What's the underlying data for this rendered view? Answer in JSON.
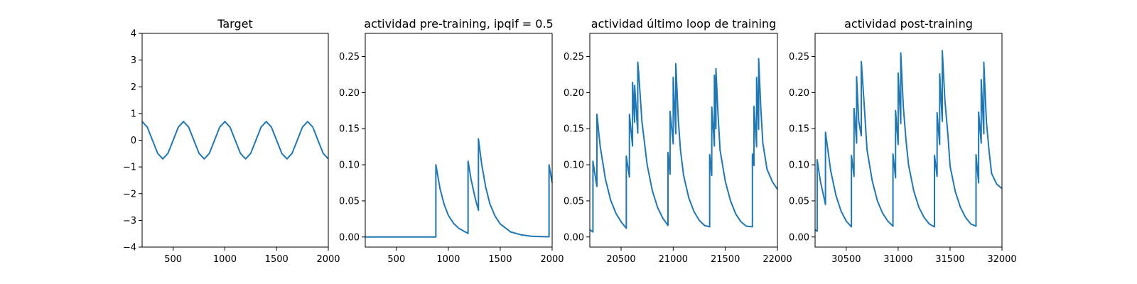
{
  "chart_data": [
    {
      "type": "line",
      "title": "Target",
      "xlabel": "",
      "ylabel": "",
      "xlim": [
        200,
        2000
      ],
      "ylim": [
        -4,
        4
      ],
      "xticks": [
        500,
        1000,
        1500,
        2000
      ],
      "yticks": [
        -4,
        -3,
        -2,
        -1,
        0,
        1,
        2,
        3,
        4
      ],
      "xtick_labels": [
        "500",
        "1000",
        "1500",
        "2000"
      ],
      "ytick_labels": [
        "−4",
        "−3",
        "−2",
        "−1",
        "0",
        "1",
        "2",
        "3",
        "4"
      ],
      "color": "#1f77b4",
      "series": [
        {
          "x": [
            200,
            250,
            300,
            350,
            400,
            450,
            500,
            550,
            600,
            650,
            700,
            750,
            800,
            850,
            900,
            950,
            1000,
            1050,
            1100,
            1150,
            1200,
            1250,
            1300,
            1350,
            1400,
            1450,
            1500,
            1550,
            1600,
            1650,
            1700,
            1750,
            1800,
            1850,
            1900,
            1950,
            2000
          ],
          "y": [
            0.7,
            0.49,
            0.0,
            -0.49,
            -0.7,
            -0.49,
            0.0,
            0.49,
            0.7,
            0.49,
            0.0,
            -0.49,
            -0.7,
            -0.49,
            0.0,
            0.49,
            0.7,
            0.49,
            0.0,
            -0.49,
            -0.7,
            -0.49,
            0.0,
            0.49,
            0.7,
            0.49,
            0.0,
            -0.49,
            -0.7,
            -0.49,
            0.0,
            0.49,
            0.7,
            0.49,
            0.0,
            -0.49,
            -0.7
          ]
        }
      ]
    },
    {
      "type": "line",
      "title": "actividad pre-training, ipqif = 0.5",
      "xlabel": "",
      "ylabel": "",
      "xlim": [
        200,
        2000
      ],
      "ylim": [
        -0.014,
        0.282
      ],
      "xticks": [
        500,
        1000,
        1500,
        2000
      ],
      "yticks": [
        0.0,
        0.05,
        0.1,
        0.15,
        0.2,
        0.25
      ],
      "xtick_labels": [
        "500",
        "1000",
        "1500",
        "2000"
      ],
      "ytick_labels": [
        "0.00",
        "0.05",
        "0.10",
        "0.15",
        "0.20",
        "0.25"
      ],
      "color": "#1f77b4",
      "series": [
        {
          "x": [
            200,
            880,
            880,
            920,
            960,
            1000,
            1050,
            1100,
            1150,
            1190,
            1190,
            1220,
            1260,
            1290,
            1290,
            1320,
            1360,
            1400,
            1450,
            1500,
            1600,
            1700,
            1800,
            1900,
            1970,
            1970,
            2000
          ],
          "y": [
            0.0,
            0.0,
            0.1,
            0.067,
            0.045,
            0.03,
            0.019,
            0.012,
            0.008,
            0.005,
            0.105,
            0.079,
            0.053,
            0.037,
            0.136,
            0.102,
            0.069,
            0.046,
            0.029,
            0.018,
            0.007,
            0.003,
            0.001,
            0.0005,
            0.0003,
            0.1,
            0.075
          ]
        }
      ]
    },
    {
      "type": "line",
      "title": "actividad último loop de training",
      "xlabel": "",
      "ylabel": "",
      "xlim": [
        20200,
        22000
      ],
      "ylim": [
        -0.014,
        0.282
      ],
      "xticks": [
        20500,
        21000,
        21500,
        22000
      ],
      "yticks": [
        0.0,
        0.05,
        0.1,
        0.15,
        0.2,
        0.25
      ],
      "xtick_labels": [
        "20500",
        "21000",
        "21500",
        "22000"
      ],
      "ytick_labels": [
        "0.00",
        "0.05",
        "0.10",
        "0.15",
        "0.20",
        "0.25"
      ],
      "color": "#1f77b4",
      "series": [
        {
          "x": [
            20200,
            20230,
            20230,
            20265,
            20265,
            20268,
            20268,
            20300,
            20350,
            20400,
            20450,
            20500,
            20550,
            20550,
            20580,
            20580,
            20610,
            20610,
            20630,
            20630,
            20660,
            20660,
            20670,
            20670,
            20700,
            20750,
            20800,
            20850,
            20900,
            20950,
            20950,
            20970,
            20970,
            21000,
            21000,
            21025,
            21025,
            21050,
            21050,
            21070,
            21070,
            21100,
            21150,
            21200,
            21250,
            21300,
            21350,
            21350,
            21370,
            21370,
            21395,
            21395,
            21410,
            21410,
            21430,
            21430,
            21450,
            21450,
            21500,
            21550,
            21600,
            21650,
            21700,
            21760,
            21760,
            21775,
            21775,
            21800,
            21800,
            21820,
            21820,
            21840,
            21840,
            21860,
            21860,
            21900,
            21950,
            22000
          ],
          "y": [
            0.01,
            0.007,
            0.105,
            0.072,
            0.072,
            0.07,
            0.17,
            0.125,
            0.08,
            0.051,
            0.033,
            0.021,
            0.012,
            0.112,
            0.083,
            0.17,
            0.126,
            0.214,
            0.159,
            0.21,
            0.144,
            0.242,
            0.225,
            0.225,
            0.16,
            0.1,
            0.064,
            0.041,
            0.026,
            0.016,
            0.117,
            0.087,
            0.174,
            0.129,
            0.221,
            0.143,
            0.24,
            0.16,
            0.16,
            0.12,
            0.12,
            0.085,
            0.054,
            0.035,
            0.023,
            0.016,
            0.014,
            0.114,
            0.085,
            0.18,
            0.126,
            0.224,
            0.15,
            0.233,
            0.17,
            0.17,
            0.12,
            0.12,
            0.077,
            0.05,
            0.032,
            0.021,
            0.015,
            0.014,
            0.115,
            0.099,
            0.181,
            0.125,
            0.221,
            0.149,
            0.247,
            0.18,
            0.18,
            0.13,
            0.13,
            0.094,
            0.077,
            0.066
          ]
        }
      ]
    },
    {
      "type": "line",
      "title": "actividad post-training",
      "xlabel": "",
      "ylabel": "",
      "xlim": [
        30200,
        32000
      ],
      "ylim": [
        -0.014,
        0.282
      ],
      "xticks": [
        30500,
        31000,
        31500,
        32000
      ],
      "yticks": [
        0.0,
        0.05,
        0.1,
        0.15,
        0.2,
        0.25
      ],
      "xtick_labels": [
        "30500",
        "31000",
        "31500",
        "32000"
      ],
      "ytick_labels": [
        "0.00",
        "0.05",
        "0.10",
        "0.15",
        "0.20",
        "0.25"
      ],
      "color": "#1f77b4",
      "series": [
        {
          "x": [
            30200,
            30220,
            30220,
            30250,
            30300,
            30300,
            30350,
            30400,
            30450,
            30500,
            30550,
            30550,
            30575,
            30575,
            30600,
            30600,
            30620,
            30620,
            30645,
            30645,
            30670,
            30670,
            30700,
            30750,
            30800,
            30850,
            30900,
            30950,
            30950,
            30975,
            30975,
            31000,
            31000,
            31025,
            31025,
            31050,
            31050,
            31075,
            31075,
            31100,
            31150,
            31200,
            31250,
            31300,
            31350,
            31350,
            31375,
            31375,
            31400,
            31400,
            31425,
            31425,
            31450,
            31450,
            31480,
            31480,
            31500,
            31550,
            31600,
            31650,
            31700,
            31750,
            31750,
            31775,
            31775,
            31800,
            31800,
            31825,
            31825,
            31850,
            31850,
            31875,
            31875,
            31900,
            31950,
            32000
          ],
          "y": [
            0.01,
            0.008,
            0.107,
            0.078,
            0.045,
            0.145,
            0.092,
            0.058,
            0.036,
            0.022,
            0.014,
            0.113,
            0.084,
            0.178,
            0.13,
            0.222,
            0.161,
            0.161,
            0.14,
            0.243,
            0.19,
            0.19,
            0.121,
            0.078,
            0.05,
            0.033,
            0.022,
            0.015,
            0.115,
            0.082,
            0.175,
            0.128,
            0.227,
            0.157,
            0.255,
            0.18,
            0.18,
            0.135,
            0.135,
            0.1,
            0.064,
            0.041,
            0.027,
            0.018,
            0.014,
            0.113,
            0.084,
            0.172,
            0.128,
            0.226,
            0.16,
            0.258,
            0.19,
            0.19,
            0.14,
            0.14,
            0.098,
            0.063,
            0.041,
            0.027,
            0.018,
            0.015,
            0.114,
            0.075,
            0.173,
            0.13,
            0.218,
            0.143,
            0.242,
            0.16,
            0.16,
            0.12,
            0.12,
            0.088,
            0.073,
            0.067
          ]
        }
      ]
    }
  ]
}
